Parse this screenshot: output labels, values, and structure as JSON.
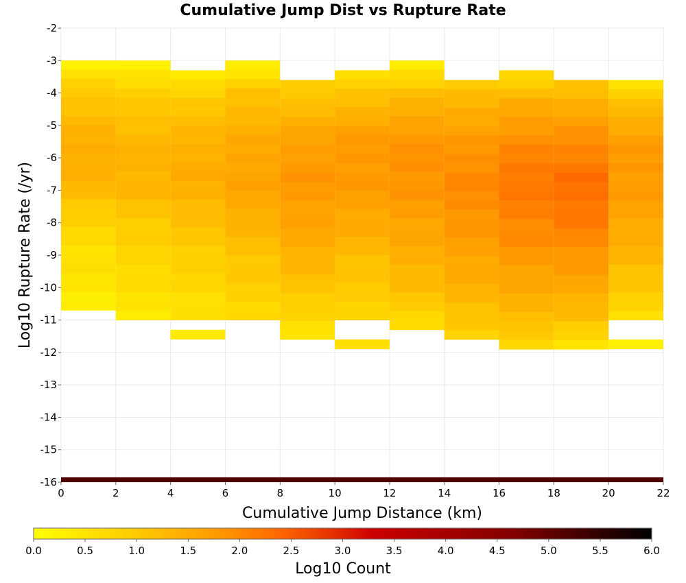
{
  "chart_data": {
    "type": "heatmap",
    "title": "Cumulative Jump Dist vs Rupture Rate",
    "xlabel": "Cumulative Jump Distance (km)",
    "ylabel": "Log10 Rupture Rate (/yr)",
    "xlim": [
      0,
      22
    ],
    "ylim": [
      -16,
      -2
    ],
    "xticks": [
      "0",
      "2",
      "4",
      "6",
      "8",
      "10",
      "12",
      "14",
      "16",
      "18",
      "20",
      "22"
    ],
    "yticks": [
      "-2",
      "-3",
      "-4",
      "-5",
      "-6",
      "-7",
      "-8",
      "-9",
      "-10",
      "-11",
      "-12",
      "-13",
      "-14",
      "-15",
      "-16"
    ],
    "x_bin_width_km": 2,
    "y_bin_width": 0.285,
    "grid": true,
    "colorbar": {
      "label": "Log10 Count",
      "range": [
        0,
        6
      ],
      "ticks": [
        "0.0",
        "0.5",
        "1.0",
        "1.5",
        "2.0",
        "2.5",
        "3.0",
        "3.5",
        "4.0",
        "4.5",
        "5.0",
        "5.5",
        "6.0"
      ],
      "stops": [
        "#ffff00",
        "#ffcc00",
        "#ff9900",
        "#ff6600",
        "#e63300",
        "#cc0000",
        "#800000",
        "#000000"
      ]
    },
    "columns": [
      {
        "x_start": 0,
        "bins": [
          [
            -3.0,
            -10.7,
            0.2,
            1.0,
            1.3,
            1.5,
            1.3,
            0.9,
            0.6,
            0.5,
            0.3
          ]
        ]
      },
      {
        "x_start": 2,
        "bins": [
          [
            -3.0,
            -11.0,
            0.2,
            0.9,
            1.2,
            1.4,
            1.3,
            1.0,
            0.8,
            0.6,
            0.4
          ]
        ]
      },
      {
        "x_start": 4,
        "bins": [
          [
            -3.3,
            -11.0,
            0.3,
            1.0,
            1.3,
            1.5,
            1.4,
            1.1,
            0.9,
            0.7,
            0.5
          ]
        ],
        "extra": [
          [
            -11.3,
            -11.6,
            0.4
          ]
        ]
      },
      {
        "x_start": 6,
        "bins": [
          [
            -3.0,
            -11.0,
            0.2,
            1.1,
            1.4,
            1.6,
            1.6,
            1.4,
            1.1,
            0.9,
            0.7
          ]
        ]
      },
      {
        "x_start": 8,
        "bins": [
          [
            -3.6,
            -11.6,
            0.8,
            1.3,
            1.7,
            1.8,
            1.7,
            1.5,
            1.2,
            0.9,
            0.4
          ]
        ]
      },
      {
        "x_start": 10,
        "bins": [
          [
            -3.3,
            -11.0,
            0.6,
            1.2,
            1.7,
            1.8,
            1.7,
            1.5,
            1.2,
            1.0,
            0.8
          ]
        ],
        "extra": [
          [
            -11.6,
            -11.9,
            0.6
          ]
        ]
      },
      {
        "x_start": 12,
        "bins": [
          [
            -3.0,
            -11.3,
            0.3,
            1.2,
            1.7,
            1.9,
            1.8,
            1.6,
            1.4,
            1.1,
            0.6
          ]
        ]
      },
      {
        "x_start": 14,
        "bins": [
          [
            -3.6,
            -11.6,
            0.9,
            1.5,
            1.8,
            2.0,
            1.9,
            1.7,
            1.5,
            1.2,
            0.8
          ]
        ]
      },
      {
        "x_start": 16,
        "bins": [
          [
            -3.3,
            -11.9,
            0.6,
            1.5,
            1.9,
            2.2,
            2.1,
            1.9,
            1.6,
            1.3,
            0.7
          ]
        ]
      },
      {
        "x_start": 18,
        "bins": [
          [
            -3.6,
            -11.9,
            1.0,
            1.6,
            2.0,
            2.3,
            2.2,
            1.9,
            1.6,
            1.2,
            0.5
          ]
        ]
      },
      {
        "x_start": 20,
        "bins": [
          [
            -3.6,
            -11.0,
            0.5,
            1.3,
            1.7,
            1.8,
            1.7,
            1.5,
            1.3,
            1.0,
            0.6
          ]
        ],
        "extra": [
          [
            -11.6,
            -11.9,
            0.3
          ]
        ]
      }
    ],
    "bottom_row": {
      "y_range": [
        -15.85,
        -16.0
      ],
      "log10_count": 5.2
    }
  }
}
